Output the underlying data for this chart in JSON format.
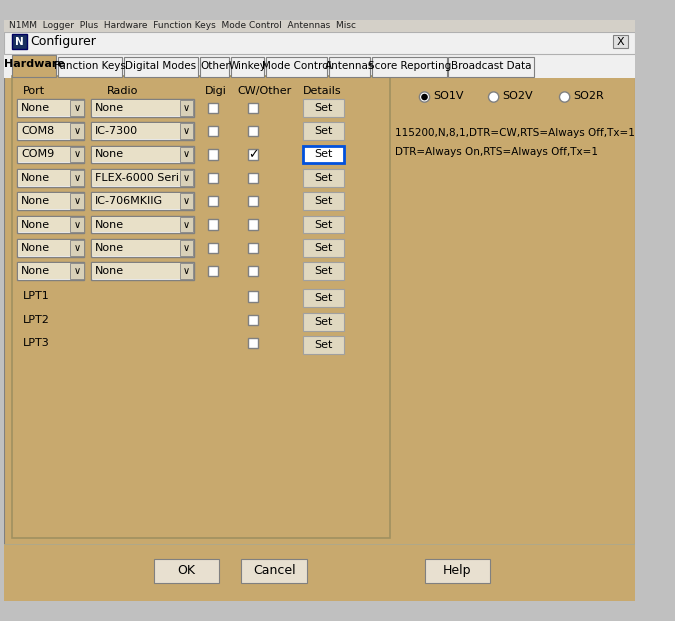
{
  "title": "Configurer",
  "bg_color": "#C8A96E",
  "titlebar_bg": "#F0F0F0",
  "outer_bg": "#C0C0C0",
  "tabs": [
    "Hardware",
    "Function Keys",
    "Digital Modes",
    "Other",
    "Winkey",
    "Mode Control",
    "Antennas",
    "Score Reporting",
    "Broadcast Data"
  ],
  "active_tab": "Hardware",
  "rows": [
    {
      "port": "None",
      "radio": "None",
      "digi": false,
      "cw": false,
      "set_active": false
    },
    {
      "port": "COM8",
      "radio": "IC-7300",
      "digi": false,
      "cw": false,
      "set_active": false
    },
    {
      "port": "COM9",
      "radio": "None",
      "digi": false,
      "cw": true,
      "set_active": true
    },
    {
      "port": "None",
      "radio": "FLEX-6000 Seri",
      "digi": false,
      "cw": false,
      "set_active": false
    },
    {
      "port": "None",
      "radio": "IC-706MKIIG",
      "digi": false,
      "cw": false,
      "set_active": false
    },
    {
      "port": "None",
      "radio": "None",
      "digi": false,
      "cw": false,
      "set_active": false
    },
    {
      "port": "None",
      "radio": "None",
      "digi": false,
      "cw": false,
      "set_active": false
    },
    {
      "port": "None",
      "radio": "None",
      "digi": false,
      "cw": false,
      "set_active": false
    }
  ],
  "lpt_rows": [
    "LPT1",
    "LPT2",
    "LPT3"
  ],
  "radio_options": [
    "SO1V",
    "SO2V",
    "SO2R"
  ],
  "selected_radio": 0,
  "detail_line1": "115200,N,8,1,DTR=CW,RTS=Always Off,Tx=1",
  "detail_line2": "DTR=Always On,RTS=Always Off,Tx=1",
  "button_bg": "#E8E0D0",
  "dropdown_bg": "#E8E0C8",
  "set_btn_bg": "#E0D8C0",
  "tab_active_bg": "#C8A96E",
  "tab_inactive_bg": "#F0F0F0",
  "tab_bar_bg": "#F0F0F0",
  "inner_panel_bg": "#C8A96E",
  "text_color": "#000000",
  "title_icon_color": "#1a3a8a",
  "menubar_bg": "#D4D0C8",
  "menubar_text": "N1MM  Logger  Plus  Hardware  Function Keys  Mode Control  Antennas  Misc",
  "panel_border": "#A09060"
}
